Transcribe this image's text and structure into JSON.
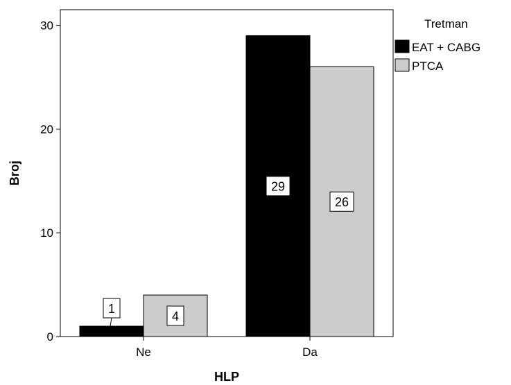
{
  "chart_data": {
    "type": "bar",
    "title": "",
    "xlabel": "HLP",
    "ylabel": "Broj",
    "categories": [
      "Ne",
      "Da"
    ],
    "ylim": [
      0,
      31.5
    ],
    "yticks": [
      0,
      10,
      20,
      30
    ],
    "grid": false,
    "legend": {
      "title": "Tretman",
      "position": "top-right"
    },
    "series": [
      {
        "name": "EAT + CABG",
        "color": "#000000",
        "values": [
          1,
          29
        ],
        "labels": [
          "1",
          "29"
        ]
      },
      {
        "name": "PTCA",
        "color": "#cccccc",
        "values": [
          4,
          26
        ],
        "labels": [
          "4",
          "26"
        ]
      }
    ]
  }
}
